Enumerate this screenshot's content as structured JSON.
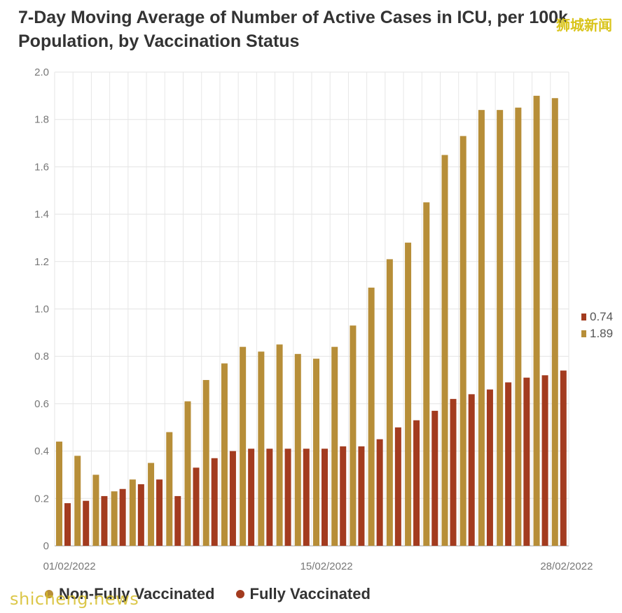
{
  "header": {
    "title_line1": "7-Day Moving Average of Number of Active Cases in ICU, per 100k",
    "title_line2": "Population, by Vaccination Status"
  },
  "watermark": {
    "top": "狮城新闻",
    "bottom": "shicheng.news"
  },
  "legend": {
    "items": [
      {
        "label": "Non-Fully Vaccinated",
        "color": "#b78e38"
      },
      {
        "label": "Fully Vaccinated",
        "color": "#a33b1f"
      }
    ]
  },
  "end_labels": {
    "fully": "0.74",
    "non_fully": "1.89"
  },
  "chart_data": {
    "type": "bar",
    "title": "7-Day Moving Average of Number of Active Cases in ICU, per 100k Population, by Vaccination Status",
    "xlabel": "",
    "ylabel": "",
    "ylim": [
      0,
      2.0
    ],
    "yticks": [
      "0",
      "0.2",
      "0.4",
      "0.6",
      "0.8",
      "1.0",
      "1.2",
      "1.4",
      "1.6",
      "1.8",
      "2.0"
    ],
    "x_tick_labels": [
      {
        "label": "01/02/2022",
        "index": 0
      },
      {
        "label": "15/02/2022",
        "index": 14
      },
      {
        "label": "28/02/2022",
        "index": 27
      }
    ],
    "categories": [
      "01/02",
      "02/02",
      "03/02",
      "04/02",
      "05/02",
      "06/02",
      "07/02",
      "08/02",
      "09/02",
      "10/02",
      "11/02",
      "12/02",
      "13/02",
      "14/02",
      "15/02",
      "16/02",
      "17/02",
      "18/02",
      "19/02",
      "20/02",
      "21/02",
      "22/02",
      "23/02",
      "24/02",
      "25/02",
      "26/02",
      "27/02",
      "28/02"
    ],
    "series": [
      {
        "name": "Non-Fully Vaccinated",
        "color": "#b78e38",
        "values": [
          0.44,
          0.38,
          0.3,
          0.23,
          0.28,
          0.35,
          0.48,
          0.61,
          0.7,
          0.77,
          0.84,
          0.82,
          0.85,
          0.81,
          0.79,
          0.84,
          0.93,
          1.09,
          1.21,
          1.28,
          1.45,
          1.65,
          1.73,
          1.84,
          1.84,
          1.85,
          1.9,
          1.89
        ]
      },
      {
        "name": "Fully Vaccinated",
        "color": "#a33b1f",
        "values": [
          0.18,
          0.19,
          0.21,
          0.24,
          0.26,
          0.28,
          0.21,
          0.33,
          0.37,
          0.4,
          0.41,
          0.41,
          0.41,
          0.41,
          0.41,
          0.42,
          0.42,
          0.45,
          0.5,
          0.53,
          0.57,
          0.62,
          0.64,
          0.66,
          0.69,
          0.71,
          0.72,
          0.74
        ]
      }
    ]
  }
}
